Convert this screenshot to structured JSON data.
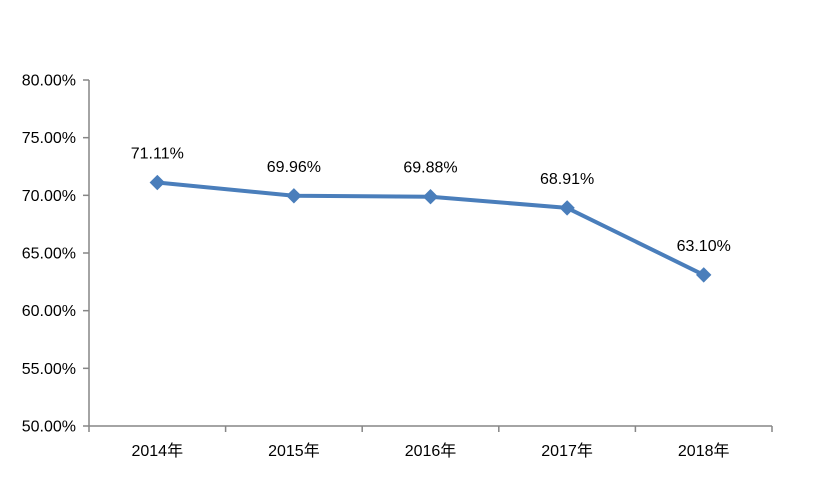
{
  "chart_data": {
    "type": "line",
    "title": "",
    "xlabel": "",
    "ylabel": "",
    "categories": [
      "2014年",
      "2015年",
      "2016年",
      "2017年",
      "2018年"
    ],
    "series": [
      {
        "values": [
          71.11,
          69.96,
          69.88,
          68.91,
          63.1
        ],
        "data_labels": [
          "71.11%",
          "69.96%",
          "69.88%",
          "68.91%",
          "63.10%"
        ],
        "color": "#4a7ebb",
        "marker": "diamond"
      }
    ],
    "ylim": [
      50,
      80
    ],
    "y_ticks": [
      50,
      55,
      60,
      65,
      70,
      75,
      80
    ],
    "y_tick_labels": [
      "50.00%",
      "55.00%",
      "60.00%",
      "65.00%",
      "70.00%",
      "75.00%",
      "80.00%"
    ],
    "grid": false,
    "legend": "none",
    "axis_color": "#868686"
  }
}
